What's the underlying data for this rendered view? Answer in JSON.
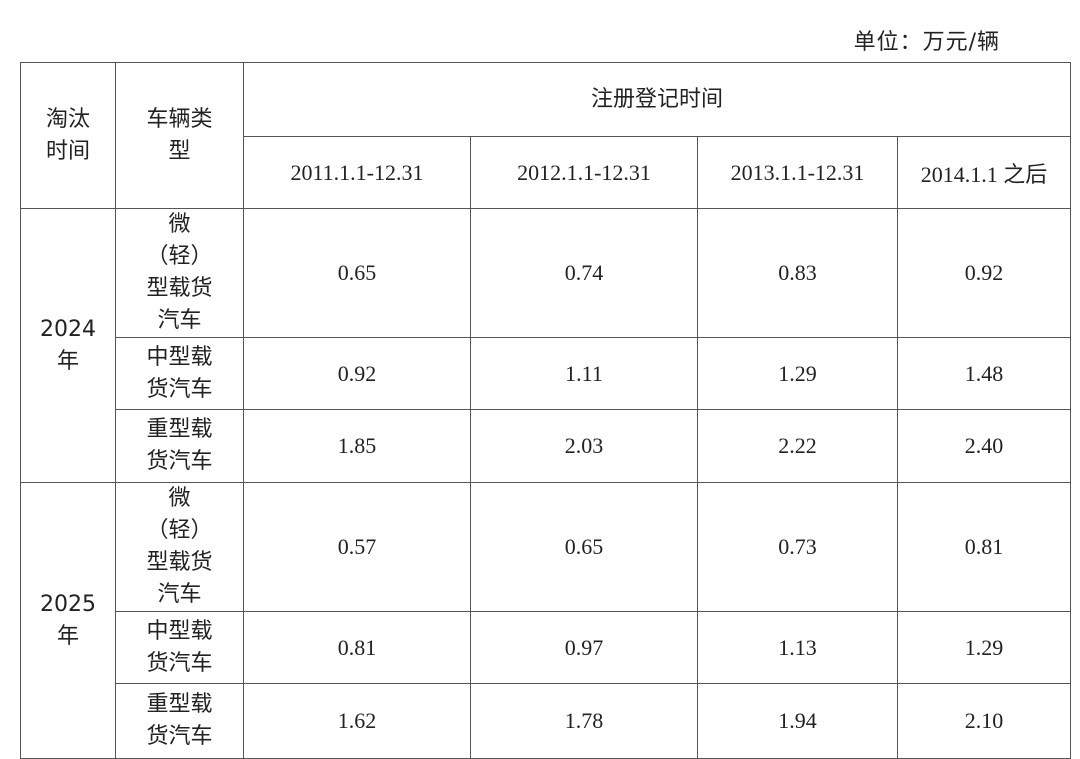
{
  "unit": "单位：万元/辆",
  "table": {
    "headers": [
      "淘汰时间",
      "车辆类型",
      "注册登记时间"
    ],
    "periods": [
      "2011.1.1-12.31",
      "2012.1.1-12.31",
      "2013.1.1-12.31",
      "2014.1.1 之后"
    ],
    "groups": [
      {
        "year": "2024年",
        "rows": [
          {
            "type": "微（轻）型载货汽车",
            "values": [
              "0.65",
              "0.74",
              "0.83",
              "0.92"
            ]
          },
          {
            "type": "中型载货汽车",
            "values": [
              "0.92",
              "1.11",
              "1.29",
              "1.48"
            ]
          },
          {
            "type": "重型载货汽车",
            "values": [
              "1.85",
              "2.03",
              "2.22",
              "2.40"
            ]
          }
        ]
      },
      {
        "year": "2025年",
        "rows": [
          {
            "type": "微（轻）型载货汽车",
            "values": [
              "0.57",
              "0.65",
              "0.73",
              "0.81"
            ]
          },
          {
            "type": "中型载货汽车",
            "values": [
              "0.81",
              "0.97",
              "1.13",
              "1.29"
            ]
          },
          {
            "type": "重型载货汽车",
            "values": [
              "1.62",
              "1.78",
              "1.94",
              "2.10"
            ]
          }
        ]
      }
    ]
  }
}
